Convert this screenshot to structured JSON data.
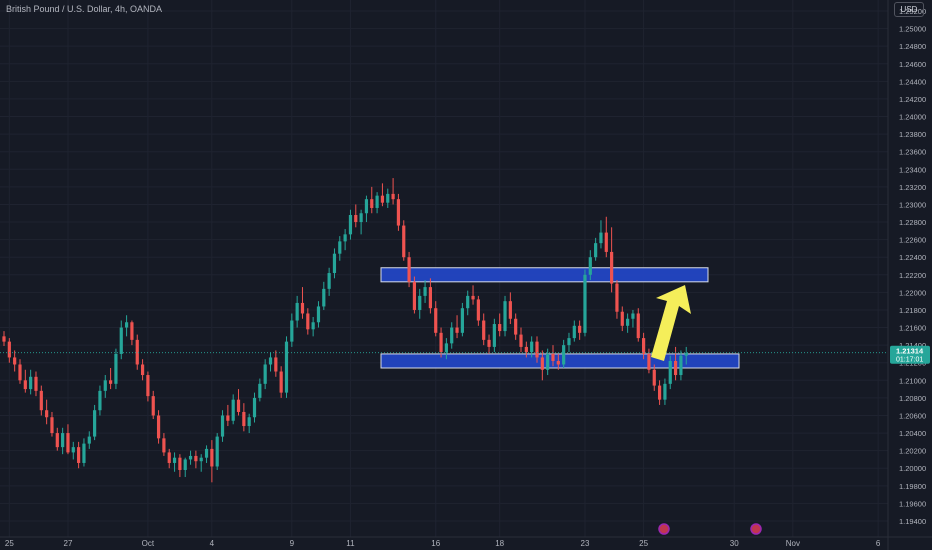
{
  "header": {
    "symbol_title": "British Pound / U.S. Dollar, 4h, OANDA",
    "currency_button": "USD"
  },
  "colors": {
    "background": "#161a25",
    "up": "#26a69a",
    "down": "#ef5350",
    "zone": "#2346c8",
    "arrow": "#f5ee5a"
  },
  "price_tag": {
    "price": "1.21314",
    "countdown": "01:17:01"
  },
  "chart_data": {
    "type": "candlestick",
    "title": "British Pound / U.S. Dollar, 4h, OANDA",
    "ylim": [
      1.193,
      1.253
    ],
    "y_ticks": [
      "1.19400",
      "1.19600",
      "1.19800",
      "1.20000",
      "1.20200",
      "1.20400",
      "1.20600",
      "1.20800",
      "1.21000",
      "1.21200",
      "1.21400",
      "1.21600",
      "1.21800",
      "1.22000",
      "1.22200",
      "1.22400",
      "1.22600",
      "1.22800",
      "1.23000",
      "1.23200",
      "1.23400",
      "1.23600",
      "1.23800",
      "1.24000",
      "1.24200",
      "1.24400",
      "1.24600",
      "1.24800",
      "1.25000",
      "1.25200"
    ],
    "x_ticks": [
      {
        "label": "25",
        "t": 1
      },
      {
        "label": "27",
        "t": 12
      },
      {
        "label": "Oct",
        "t": 27
      },
      {
        "label": "4",
        "t": 39
      },
      {
        "label": "9",
        "t": 54
      },
      {
        "label": "11",
        "t": 65
      },
      {
        "label": "16",
        "t": 81
      },
      {
        "label": "18",
        "t": 93
      },
      {
        "label": "23",
        "t": 109
      },
      {
        "label": "25",
        "t": 120
      },
      {
        "label": "30",
        "t": 137
      },
      {
        "label": "Nov",
        "t": 148
      },
      {
        "label": "6",
        "t": 164
      },
      {
        "label": "8",
        "t": 175
      }
    ],
    "resistance_zone": [
      1.2212,
      1.2228
    ],
    "support_zone": [
      1.2114,
      1.213
    ],
    "current_price": 1.21314,
    "candles_ohlc": [
      [
        1.215,
        1.2156,
        1.2139,
        1.2144
      ],
      [
        1.2144,
        1.2148,
        1.212,
        1.2126
      ],
      [
        1.2126,
        1.2134,
        1.211,
        1.2118
      ],
      [
        1.2118,
        1.2124,
        1.2096,
        1.21
      ],
      [
        1.21,
        1.2112,
        1.2086,
        1.209
      ],
      [
        1.209,
        1.2112,
        1.2084,
        1.2104
      ],
      [
        1.2104,
        1.211,
        1.2082,
        1.2088
      ],
      [
        1.2088,
        1.2094,
        1.206,
        1.2066
      ],
      [
        1.2066,
        1.2078,
        1.205,
        1.2058
      ],
      [
        1.2058,
        1.2064,
        1.2036,
        1.204
      ],
      [
        1.204,
        1.2046,
        1.202,
        1.2024
      ],
      [
        1.2024,
        1.2046,
        1.2016,
        1.204
      ],
      [
        1.204,
        1.205,
        1.2016,
        1.2018
      ],
      [
        1.2018,
        1.203,
        1.201,
        1.2024
      ],
      [
        1.2024,
        1.203,
        1.2,
        1.2006
      ],
      [
        1.2006,
        1.2034,
        1.2002,
        1.2028
      ],
      [
        1.2028,
        1.2042,
        1.2022,
        1.2036
      ],
      [
        1.2036,
        1.2072,
        1.2032,
        1.2066
      ],
      [
        1.2066,
        1.2094,
        1.206,
        1.2088
      ],
      [
        1.2088,
        1.2106,
        1.208,
        1.21
      ],
      [
        1.21,
        1.2114,
        1.209,
        1.2096
      ],
      [
        1.2096,
        1.2136,
        1.209,
        1.213
      ],
      [
        1.213,
        1.2168,
        1.2124,
        1.216
      ],
      [
        1.216,
        1.2174,
        1.215,
        1.2166
      ],
      [
        1.2166,
        1.2168,
        1.214,
        1.2146
      ],
      [
        1.2146,
        1.2152,
        1.2112,
        1.2118
      ],
      [
        1.2118,
        1.2124,
        1.21,
        1.2106
      ],
      [
        1.2106,
        1.211,
        1.2076,
        1.2082
      ],
      [
        1.2082,
        1.2088,
        1.2056,
        1.206
      ],
      [
        1.206,
        1.2066,
        1.2028,
        1.2034
      ],
      [
        1.2034,
        1.204,
        1.2014,
        1.2018
      ],
      [
        1.2018,
        1.2022,
        1.2,
        1.2006
      ],
      [
        1.2006,
        1.2018,
        1.1996,
        1.2012
      ],
      [
        1.2012,
        1.2016,
        1.199,
        1.1998
      ],
      [
        1.1998,
        1.2012,
        1.199,
        1.201
      ],
      [
        1.201,
        1.202,
        1.2004,
        1.2014
      ],
      [
        1.2014,
        1.202,
        1.2,
        1.2008
      ],
      [
        1.2008,
        1.2016,
        1.1996,
        1.2012
      ],
      [
        1.2012,
        1.2026,
        1.2006,
        1.2022
      ],
      [
        1.2022,
        1.2032,
        1.1984,
        1.2002
      ],
      [
        1.2002,
        1.204,
        1.1998,
        1.2036
      ],
      [
        1.2036,
        1.2066,
        1.203,
        1.206
      ],
      [
        1.206,
        1.2072,
        1.2048,
        1.2054
      ],
      [
        1.2054,
        1.2084,
        1.205,
        1.2078
      ],
      [
        1.2078,
        1.209,
        1.206,
        1.2064
      ],
      [
        1.2064,
        1.2074,
        1.2042,
        1.2048
      ],
      [
        1.2048,
        1.2062,
        1.204,
        1.2058
      ],
      [
        1.2058,
        1.2086,
        1.2052,
        1.208
      ],
      [
        1.208,
        1.2102,
        1.2076,
        1.2096
      ],
      [
        1.2096,
        1.2124,
        1.209,
        1.2118
      ],
      [
        1.2118,
        1.2132,
        1.211,
        1.2126
      ],
      [
        1.2126,
        1.2134,
        1.2104,
        1.211
      ],
      [
        1.211,
        1.2116,
        1.208,
        1.2086
      ],
      [
        1.2086,
        1.215,
        1.208,
        1.2144
      ],
      [
        1.2144,
        1.2176,
        1.2138,
        1.2168
      ],
      [
        1.2168,
        1.2196,
        1.216,
        1.2188
      ],
      [
        1.2188,
        1.2206,
        1.217,
        1.2176
      ],
      [
        1.2176,
        1.2182,
        1.2152,
        1.2158
      ],
      [
        1.2158,
        1.2172,
        1.215,
        1.2166
      ],
      [
        1.2166,
        1.219,
        1.216,
        1.2184
      ],
      [
        1.2184,
        1.2212,
        1.218,
        1.2204
      ],
      [
        1.2204,
        1.2228,
        1.2196,
        1.2222
      ],
      [
        1.2222,
        1.225,
        1.2216,
        1.2244
      ],
      [
        1.2244,
        1.2264,
        1.2236,
        1.2258
      ],
      [
        1.2258,
        1.2272,
        1.2248,
        1.2266
      ],
      [
        1.2266,
        1.2294,
        1.226,
        1.2288
      ],
      [
        1.2288,
        1.23,
        1.2274,
        1.228
      ],
      [
        1.228,
        1.2294,
        1.2266,
        1.229
      ],
      [
        1.229,
        1.231,
        1.228,
        1.2306
      ],
      [
        1.2306,
        1.232,
        1.229,
        1.2296
      ],
      [
        1.2296,
        1.2314,
        1.229,
        1.231
      ],
      [
        1.231,
        1.2324,
        1.2298,
        1.2302
      ],
      [
        1.2302,
        1.2318,
        1.2296,
        1.2312
      ],
      [
        1.2312,
        1.233,
        1.23,
        1.2306
      ],
      [
        1.2306,
        1.2312,
        1.227,
        1.2276
      ],
      [
        1.2276,
        1.2282,
        1.2236,
        1.224
      ],
      [
        1.224,
        1.2246,
        1.2206,
        1.2212
      ],
      [
        1.2212,
        1.2218,
        1.2176,
        1.218
      ],
      [
        1.218,
        1.2204,
        1.217,
        1.2196
      ],
      [
        1.2196,
        1.2214,
        1.2188,
        1.2206
      ],
      [
        1.2206,
        1.2216,
        1.2176,
        1.2182
      ],
      [
        1.2182,
        1.219,
        1.215,
        1.2154
      ],
      [
        1.2154,
        1.216,
        1.2126,
        1.2132
      ],
      [
        1.2132,
        1.2148,
        1.2124,
        1.2142
      ],
      [
        1.2142,
        1.2166,
        1.2136,
        1.216
      ],
      [
        1.216,
        1.2174,
        1.2148,
        1.2154
      ],
      [
        1.2154,
        1.2188,
        1.215,
        1.2182
      ],
      [
        1.2182,
        1.2202,
        1.2174,
        1.2196
      ],
      [
        1.2196,
        1.2208,
        1.2186,
        1.2192
      ],
      [
        1.2192,
        1.2196,
        1.2162,
        1.2168
      ],
      [
        1.2168,
        1.2176,
        1.214,
        1.2146
      ],
      [
        1.2146,
        1.2152,
        1.213,
        1.2138
      ],
      [
        1.2138,
        1.217,
        1.2132,
        1.2164
      ],
      [
        1.2164,
        1.2176,
        1.215,
        1.2156
      ],
      [
        1.2156,
        1.2196,
        1.215,
        1.219
      ],
      [
        1.219,
        1.22,
        1.2164,
        1.217
      ],
      [
        1.217,
        1.2176,
        1.2146,
        1.2152
      ],
      [
        1.2152,
        1.216,
        1.2132,
        1.2138
      ],
      [
        1.2138,
        1.2144,
        1.2126,
        1.2132
      ],
      [
        1.2132,
        1.215,
        1.2126,
        1.2144
      ],
      [
        1.2144,
        1.215,
        1.212,
        1.2126
      ],
      [
        1.2126,
        1.2134,
        1.21,
        1.2112
      ],
      [
        1.2112,
        1.2136,
        1.2106,
        1.213
      ],
      [
        1.213,
        1.214,
        1.2116,
        1.2122
      ],
      [
        1.2122,
        1.213,
        1.2112,
        1.2118
      ],
      [
        1.2118,
        1.2146,
        1.2114,
        1.214
      ],
      [
        1.214,
        1.2154,
        1.2132,
        1.2148
      ],
      [
        1.2148,
        1.2168,
        1.2144,
        1.2162
      ],
      [
        1.2162,
        1.2168,
        1.2146,
        1.2154
      ],
      [
        1.2154,
        1.2226,
        1.215,
        1.222
      ],
      [
        1.222,
        1.2248,
        1.2214,
        1.224
      ],
      [
        1.224,
        1.2262,
        1.2236,
        1.2256
      ],
      [
        1.2256,
        1.2282,
        1.225,
        1.2268
      ],
      [
        1.2268,
        1.2286,
        1.224,
        1.2246
      ],
      [
        1.2246,
        1.2274,
        1.22,
        1.221
      ],
      [
        1.221,
        1.2214,
        1.217,
        1.2178
      ],
      [
        1.2178,
        1.2184,
        1.2156,
        1.2162
      ],
      [
        1.2162,
        1.2176,
        1.2154,
        1.217
      ],
      [
        1.217,
        1.218,
        1.216,
        1.2176
      ],
      [
        1.2176,
        1.2182,
        1.2144,
        1.2148
      ],
      [
        1.2148,
        1.2154,
        1.2124,
        1.213
      ],
      [
        1.213,
        1.2136,
        1.2108,
        1.2112
      ],
      [
        1.2112,
        1.2118,
        1.2088,
        1.2094
      ],
      [
        1.2094,
        1.21,
        1.2072,
        1.2078
      ],
      [
        1.2078,
        1.2102,
        1.2072,
        1.2096
      ],
      [
        1.2096,
        1.2128,
        1.209,
        1.2122
      ],
      [
        1.2122,
        1.2138,
        1.21,
        1.2106
      ],
      [
        1.2106,
        1.2134,
        1.21,
        1.2128
      ],
      [
        1.2128,
        1.2138,
        1.2118,
        1.2131
      ]
    ]
  }
}
